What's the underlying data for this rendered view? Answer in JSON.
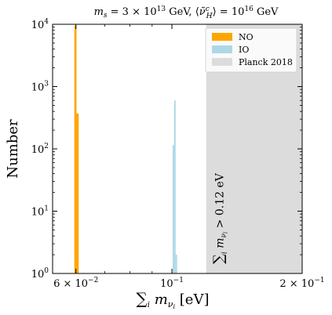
{
  "chart_data": {
    "type": "bar",
    "title": "m_s = 3 × 10^13 GeV, ⟨ν̃_H^c⟩ = 10^16 GeV",
    "xlabel": "∑_i m_{ν_i} [eV]",
    "ylabel": "Number",
    "x_scale": "log",
    "y_scale": "log",
    "xlim": [
      0.053,
      0.2
    ],
    "ylim": [
      1,
      10000
    ],
    "x_ticks": [
      {
        "value": 0.06,
        "label": "6 × 10^-2"
      },
      {
        "value": 0.1,
        "label": "10^-1"
      },
      {
        "value": 0.2,
        "label": "2 × 10^-1"
      }
    ],
    "y_ticks": [
      {
        "value": 1,
        "label": "10^0"
      },
      {
        "value": 10,
        "label": "10^1"
      },
      {
        "value": 100,
        "label": "10^2"
      },
      {
        "value": 1000,
        "label": "10^3"
      },
      {
        "value": 10000,
        "label": "10^4"
      }
    ],
    "series": [
      {
        "name": "NO",
        "color": "#FFA500",
        "bins": [
          {
            "x0": 0.0595,
            "x1": 0.0602,
            "count": 9500
          },
          {
            "x0": 0.0602,
            "x1": 0.0609,
            "count": 370
          }
        ]
      },
      {
        "name": "IO",
        "color": "#ADD8E6",
        "bins": [
          {
            "x0": 0.1004,
            "x1": 0.1012,
            "count": 115
          },
          {
            "x0": 0.1012,
            "x1": 0.102,
            "count": 600
          },
          {
            "x0": 0.102,
            "x1": 0.1028,
            "count": 2
          }
        ]
      }
    ],
    "shaded_region": {
      "name": "Planck 2018",
      "x_start": 0.12,
      "color": "#DCDCDC",
      "annotation": "∑_i m_{ν_i} > 0.12 eV"
    },
    "legend_position": "top-right",
    "grid": false
  }
}
